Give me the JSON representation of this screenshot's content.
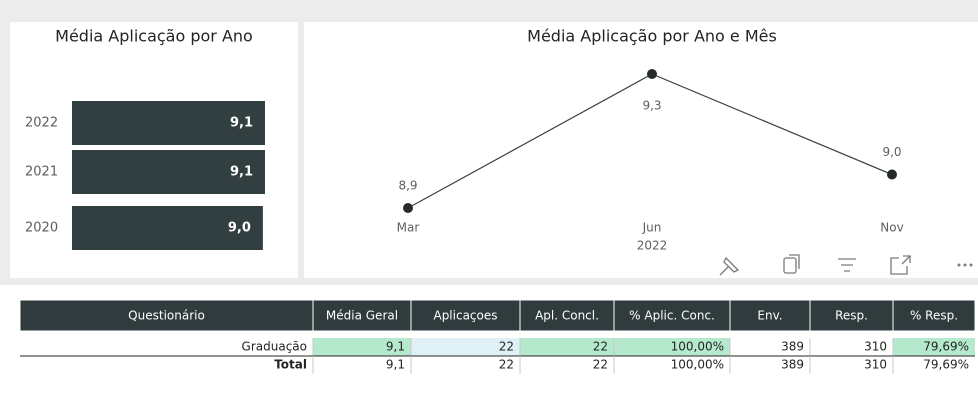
{
  "chart_data": [
    {
      "type": "hbar",
      "title": "Média Aplicação por Ano",
      "categories": [
        "2022",
        "2021",
        "2020"
      ],
      "values": [
        9.1,
        9.1,
        9.0
      ],
      "value_labels": [
        "9,1",
        "9,1",
        "9,0"
      ],
      "color": "#323f41"
    },
    {
      "type": "line",
      "title": "Média Aplicação por Ano e Mês",
      "categories": [
        "Mar",
        "Jun",
        "Nov"
      ],
      "x_group_label": "2022",
      "values": [
        8.9,
        9.3,
        9.0
      ],
      "value_labels": [
        "8,9",
        "9,3",
        "9,0"
      ],
      "color": "#3a3f41"
    }
  ],
  "table": {
    "headers": [
      "Questionário",
      "Média Geral",
      "Aplicaçoes",
      "Apl. Concl.",
      "% Aplic. Conc.",
      "Env.",
      "Resp.",
      "% Resp."
    ],
    "rows": [
      [
        "Graduação",
        "9,1",
        "22",
        "22",
        "100,00%",
        "389",
        "310",
        "79,69%"
      ]
    ],
    "total": [
      "Total",
      "9,1",
      "22",
      "22",
      "100,00%",
      "389",
      "310",
      "79,69%"
    ]
  }
}
